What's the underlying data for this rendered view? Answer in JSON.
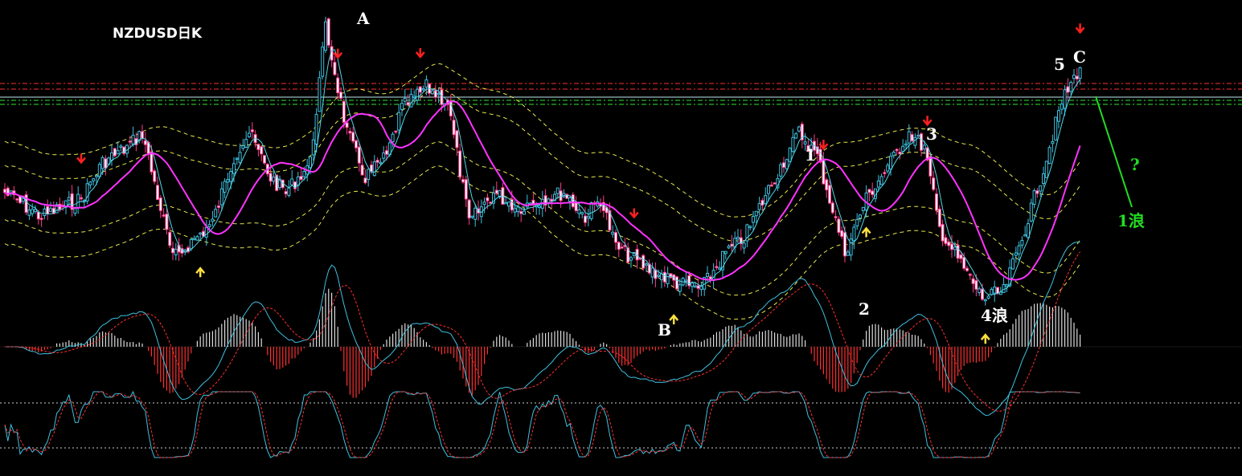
{
  "chart_data": {
    "type": "candlestick",
    "title": "NZDUSD日K",
    "panels": [
      "price",
      "macd",
      "stochastic"
    ],
    "colors": {
      "background": "#000000",
      "bull_body": "#000000",
      "bull_border": "#3fc0e0",
      "bear_body": "#ffffff",
      "bear_border": "#ff3b8a",
      "ma_fast": "#4fd8e8",
      "ma_slow": "#ff33ff",
      "band": "#e8e84a",
      "resistance_red": "#ff3030",
      "support_green": "#2ee82e",
      "arrow_down": "#ff2020",
      "arrow_up": "#ffe040",
      "projection": "#22dd22",
      "macd_line": "#3fc0e0",
      "macd_signal": "#ff3030",
      "stoch_k": "#3fc0e0",
      "stoch_d": "#ff3030"
    },
    "wave_labels": {
      "a": "A",
      "b": "B",
      "c": "C",
      "w1": "1",
      "w2": "2",
      "w3": "3",
      "w4": "4浪",
      "w5": "5",
      "next_question": "?",
      "next_wave": "1浪"
    },
    "price_path_keypoints": [
      [
        0,
        0.6
      ],
      [
        12,
        0.68
      ],
      [
        25,
        0.62
      ],
      [
        32,
        0.5
      ],
      [
        40,
        0.45
      ],
      [
        45,
        0.4
      ],
      [
        55,
        0.82
      ],
      [
        68,
        0.7
      ],
      [
        75,
        0.48
      ],
      [
        80,
        0.4
      ],
      [
        87,
        0.55
      ],
      [
        92,
        0.6
      ],
      [
        100,
        0.5
      ],
      [
        105,
        0.05
      ],
      [
        112,
        0.4
      ],
      [
        118,
        0.55
      ],
      [
        125,
        0.48
      ],
      [
        130,
        0.32
      ],
      [
        138,
        0.25
      ],
      [
        145,
        0.3
      ],
      [
        152,
        0.7
      ],
      [
        160,
        0.6
      ],
      [
        168,
        0.65
      ],
      [
        176,
        0.62
      ],
      [
        183,
        0.6
      ],
      [
        190,
        0.68
      ],
      [
        195,
        0.62
      ],
      [
        200,
        0.78
      ],
      [
        210,
        0.85
      ],
      [
        220,
        0.9
      ],
      [
        228,
        0.92
      ],
      [
        236,
        0.8
      ],
      [
        242,
        0.75
      ],
      [
        252,
        0.55
      ],
      [
        260,
        0.4
      ],
      [
        266,
        0.48
      ],
      [
        270,
        0.62
      ],
      [
        275,
        0.8
      ],
      [
        282,
        0.62
      ],
      [
        290,
        0.5
      ],
      [
        296,
        0.4
      ],
      [
        301,
        0.45
      ],
      [
        306,
        0.72
      ],
      [
        312,
        0.82
      ],
      [
        320,
        0.95
      ],
      [
        327,
        0.93
      ],
      [
        333,
        0.75
      ],
      [
        340,
        0.52
      ],
      [
        346,
        0.3
      ],
      [
        352,
        0.18
      ]
    ]
  }
}
